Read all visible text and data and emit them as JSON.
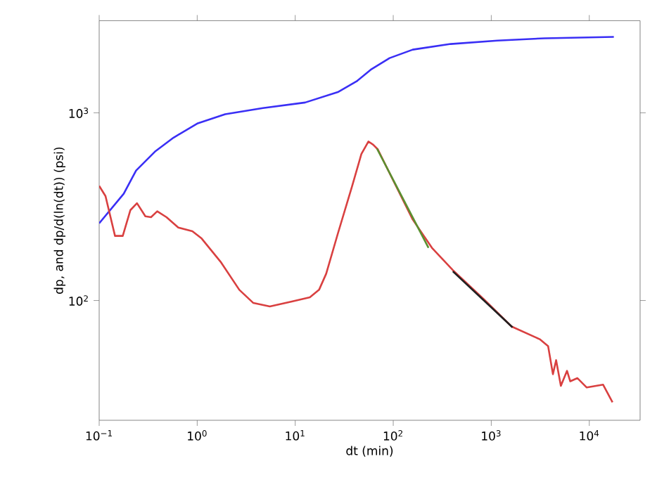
{
  "chart_data": {
    "type": "line",
    "xlabel": "dt (min)",
    "ylabel": "dp, and dp/d(ln(dt)) (psi)",
    "log": "xy",
    "xlim": [
      0.1,
      33000
    ],
    "ylim": [
      23,
      3100
    ],
    "xticks": [
      {
        "value": 0.1,
        "label": "10$^{−1}$"
      },
      {
        "value": 1,
        "label": "10$^{0}$"
      },
      {
        "value": 10,
        "label": "10$^{1}$"
      },
      {
        "value": 100,
        "label": "10$^{2}$"
      },
      {
        "value": 1000,
        "label": "10$^{3}$"
      },
      {
        "value": 10000,
        "label": "10$^{4}$"
      }
    ],
    "yticks": [
      {
        "value": 100,
        "label": "10$^{2}$"
      },
      {
        "value": 1000,
        "label": "10$^{3}$"
      }
    ],
    "marker": "none",
    "line_style": "solid",
    "series": [
      {
        "color": "#3a2ff5",
        "x": [
          0.1,
          0.178,
          0.238,
          0.37,
          0.574,
          1.0,
          1.93,
          4.68,
          12.6,
          27.2,
          42.3,
          58.9,
          91.8,
          158,
          385,
          1156,
          3490,
          17800
        ],
        "values": [
          258,
          371,
          493,
          621,
          738,
          877,
          984,
          1060,
          1135,
          1290,
          1472,
          1698,
          1959,
          2172,
          2328,
          2427,
          2497,
          2541
        ]
      },
      {
        "color": "#d94040",
        "x": [
          0.1,
          0.116,
          0.145,
          0.174,
          0.208,
          0.243,
          0.296,
          0.338,
          0.391,
          0.486,
          0.641,
          0.893,
          1.11,
          1.73,
          2.69,
          3.74,
          5.51,
          9.06,
          14.1,
          17.5,
          20.7,
          27.2,
          37.9,
          47.3,
          55.8,
          62.4,
          69.6,
          102,
          158,
          248,
          406,
          832,
          1611,
          3119,
          3802,
          4256,
          4589,
          5129,
          5929,
          6397,
          7551,
          9420,
          13840,
          17260
        ],
        "values": [
          408,
          360,
          221,
          221,
          303,
          330,
          281,
          278,
          299,
          278,
          245,
          234,
          214,
          161,
          114,
          97,
          93,
          98.6,
          104,
          114,
          139,
          227,
          404,
          603,
          704,
          677,
          639,
          427,
          270,
          191,
          145,
          102,
          72.7,
          62.2,
          57.1,
          40.5,
          48.1,
          35.1,
          42.2,
          37.1,
          38.6,
          34.4,
          35.6,
          28.7
        ]
      },
      {
        "color": "#5a9030",
        "x": [
          68.1,
          229
        ],
        "values": [
          646,
          191
        ]
      },
      {
        "color": "#202020",
        "x": [
          406,
          1648
        ],
        "values": [
          143,
          71.9
        ]
      }
    ]
  }
}
